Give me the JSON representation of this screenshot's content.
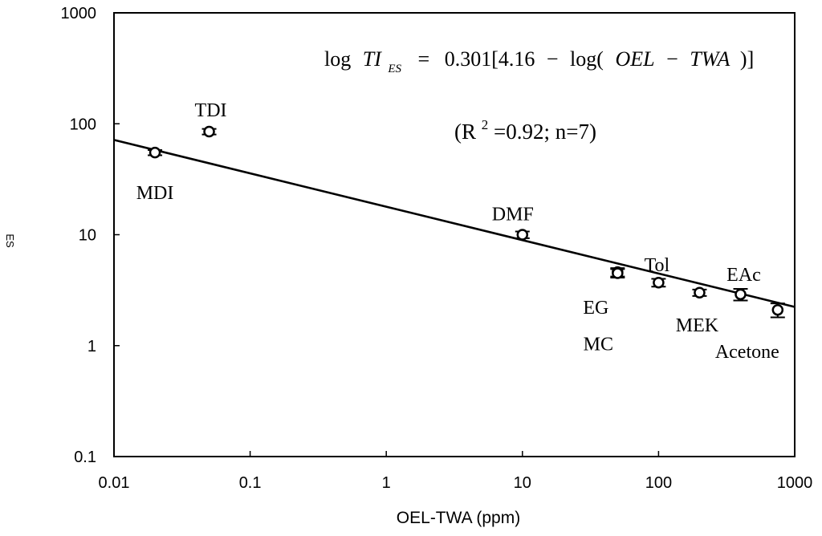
{
  "chart_data": {
    "type": "scatter",
    "xscale": "log",
    "yscale": "log",
    "xlim": [
      0.01,
      1000
    ],
    "ylim": [
      0.1,
      1000
    ],
    "xlabel": "OEL-TWA (ppm)",
    "ylabel": "ES",
    "x_ticks": [
      "0.01",
      "0.1",
      "1",
      "10",
      "100",
      "1000"
    ],
    "y_ticks": [
      "0.1",
      "1",
      "10",
      "100",
      "1000"
    ],
    "points": [
      {
        "label": "MDI",
        "x": 0.02,
        "y": 55,
        "err": 3
      },
      {
        "label": "TDI",
        "x": 0.05,
        "y": 85,
        "err": 5
      },
      {
        "label": "DMF",
        "x": 10,
        "y": 10,
        "err": 0.7
      },
      {
        "label": "EG",
        "x": 50,
        "y": 4.6,
        "err": 0.4
      },
      {
        "label": "MC",
        "x": 50,
        "y": 4.5,
        "err": 0.4
      },
      {
        "label": "Tol",
        "x": 100,
        "y": 3.7,
        "err": 0.3
      },
      {
        "label": "MEK",
        "x": 200,
        "y": 3.0,
        "err": 0.2
      },
      {
        "label": "EAc",
        "x": 400,
        "y": 2.9,
        "err": 0.35
      },
      {
        "label": "Acetone",
        "x": 750,
        "y": 2.1,
        "err": 0.3
      }
    ],
    "fit_line": {
      "intercept_log": 4.16,
      "slope": 0.301
    },
    "equation": {
      "lhs_log": "log",
      "lhs_var": "TI",
      "lhs_sub": "ES",
      "equals": "=",
      "coef": "0.301[4.16",
      "minus": "−",
      "log_open": "log(",
      "inner_a": "OEL",
      "inner_minus": "−",
      "inner_b": "TWA",
      "close": ")]"
    },
    "stats": {
      "open": "(R",
      "sup": "2",
      "rest": "=0.92; n=7)"
    }
  }
}
